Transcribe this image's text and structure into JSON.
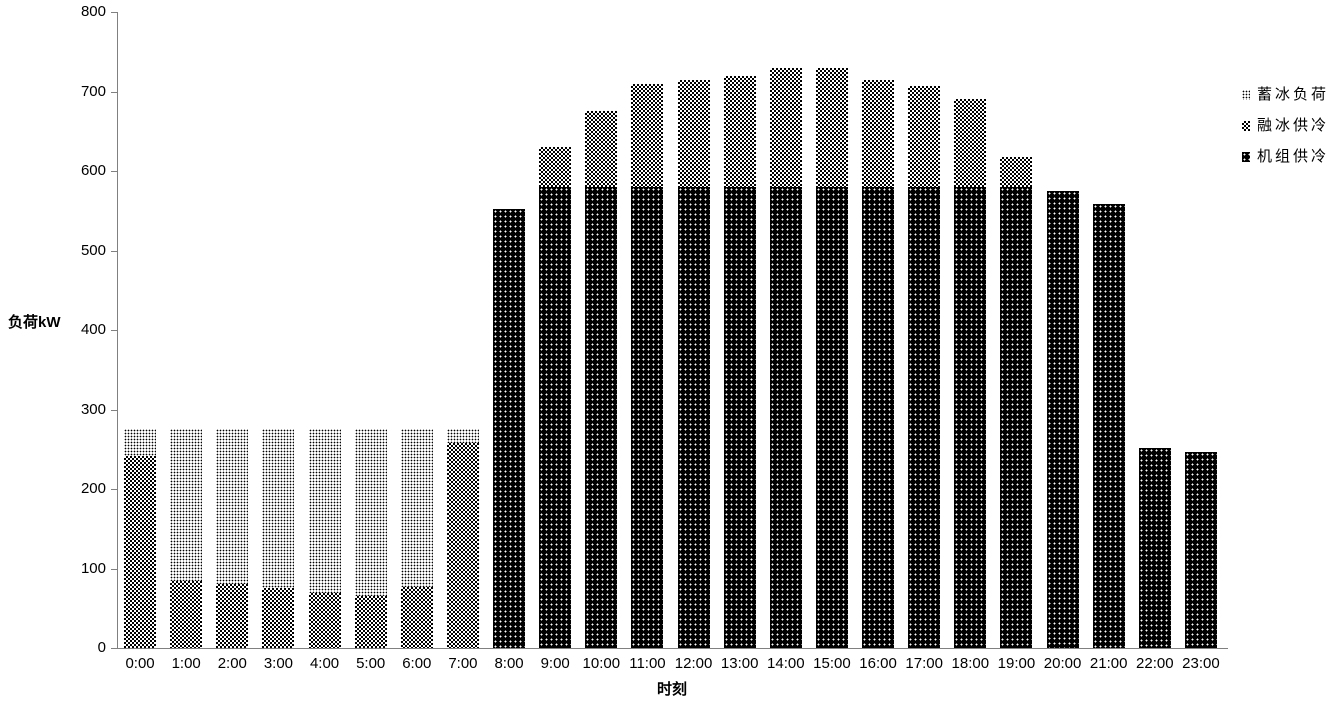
{
  "chart_data": {
    "type": "bar",
    "stacked": true,
    "title": "",
    "xlabel": "时刻",
    "ylabel": "负荷kW",
    "ylim": [
      0,
      800
    ],
    "yticks": [
      0,
      100,
      200,
      300,
      400,
      500,
      600,
      700,
      800
    ],
    "grid": false,
    "legend_position": "right",
    "categories": [
      "0:00",
      "1:00",
      "2:00",
      "3:00",
      "4:00",
      "5:00",
      "6:00",
      "7:00",
      "8:00",
      "9:00",
      "10:00",
      "11:00",
      "12:00",
      "13:00",
      "14:00",
      "15:00",
      "16:00",
      "17:00",
      "18:00",
      "19:00",
      "20:00",
      "21:00",
      "22:00",
      "23:00"
    ],
    "series": [
      {
        "name": "机组供冷",
        "id": "unit-cooling",
        "pattern": "black-dots",
        "values": [
          0,
          0,
          0,
          0,
          0,
          0,
          0,
          0,
          552,
          580,
          580,
          580,
          580,
          580,
          580,
          580,
          580,
          580,
          580,
          580,
          575,
          558,
          252,
          247
        ]
      },
      {
        "name": "融冰供冷",
        "id": "ice-melt-cooling",
        "pattern": "checker",
        "values": [
          242,
          84,
          81,
          76,
          69,
          66,
          77,
          258,
          0,
          50,
          95,
          130,
          135,
          140,
          150,
          150,
          135,
          127,
          110,
          37,
          0,
          0,
          0,
          0
        ]
      },
      {
        "name": "蓄冰负荷",
        "id": "ice-storage-load",
        "pattern": "light-dots",
        "values": [
          34,
          192,
          195,
          200,
          207,
          210,
          199,
          18,
          0,
          0,
          0,
          0,
          0,
          0,
          0,
          0,
          0,
          0,
          0,
          0,
          0,
          0,
          0,
          0
        ]
      }
    ],
    "legend": [
      {
        "label": "蓄冰负荷",
        "pattern": "light-dots"
      },
      {
        "label": "融冰供冷",
        "pattern": "checker"
      },
      {
        "label": "机组供冷",
        "pattern": "black-dots"
      }
    ],
    "colors": {
      "foreground": "#000000",
      "background": "#ffffff",
      "axis": "#808080"
    }
  }
}
